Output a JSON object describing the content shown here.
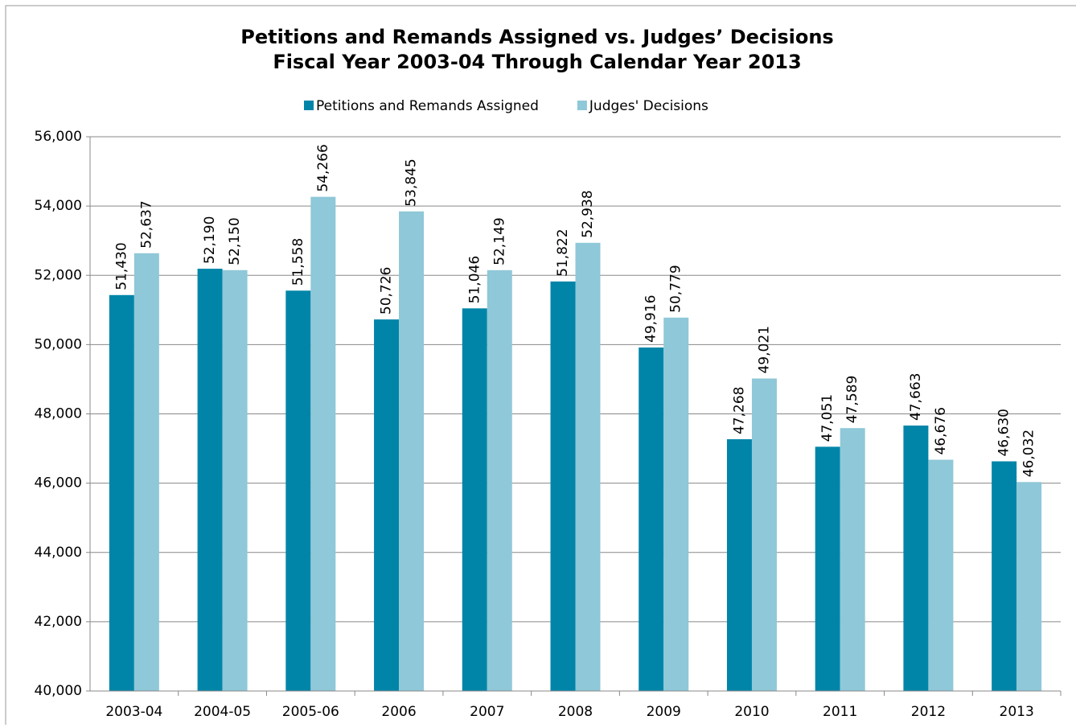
{
  "chart_data": {
    "type": "bar",
    "title": "Petitions and Remands Assigned vs. Judges’ Decisions",
    "subtitle": "Fiscal Year 2003-04 Through Calendar Year 2013",
    "categories": [
      "2003-04",
      "2004-05",
      "2005-06",
      "2006",
      "2007",
      "2008",
      "2009",
      "2010",
      "2011",
      "2012",
      "2013"
    ],
    "series": [
      {
        "name": "Petitions and Remands Assigned",
        "color": "#0085a8",
        "values": [
          51430,
          52190,
          51558,
          50726,
          51046,
          51822,
          49916,
          47268,
          47051,
          47663,
          46630
        ],
        "value_labels": [
          "51,430",
          "52,190",
          "51,558",
          "50,726",
          "51,046",
          "51,822",
          "49,916",
          "47,268",
          "47,051",
          "47,663",
          "46,630"
        ]
      },
      {
        "name": "Judges' Decisions",
        "color": "#8fc8d8",
        "values": [
          52637,
          52150,
          54266,
          53845,
          52149,
          52938,
          50779,
          49021,
          47589,
          46676,
          46032
        ],
        "value_labels": [
          "52,637",
          "52,150",
          "54,266",
          "53,845",
          "52,149",
          "52,938",
          "50,779",
          "49,021",
          "47,589",
          "46,676",
          "46,032"
        ]
      }
    ],
    "ylim": [
      40000,
      56000
    ],
    "yticks": [
      {
        "value": 40000,
        "label": "40,000"
      },
      {
        "value": 42000,
        "label": "42,000"
      },
      {
        "value": 44000,
        "label": "44,000"
      },
      {
        "value": 46000,
        "label": "46,000"
      },
      {
        "value": 48000,
        "label": "48,000"
      },
      {
        "value": 50000,
        "label": "50,000"
      },
      {
        "value": 52000,
        "label": "52,000"
      },
      {
        "value": 54000,
        "label": "54,000"
      },
      {
        "value": 56000,
        "label": "56,000"
      }
    ],
    "grid": true,
    "legend": "top"
  }
}
